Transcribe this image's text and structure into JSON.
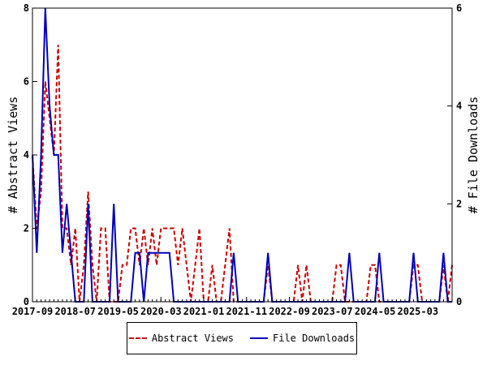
{
  "chart_data": {
    "type": "line",
    "y_left": {
      "label": "# Abstract Views",
      "range": [
        0,
        8
      ],
      "ticks": [
        0,
        2,
        4,
        6,
        8
      ]
    },
    "y_right": {
      "label": "# File Downloads",
      "range": [
        0,
        6
      ],
      "ticks": [
        0,
        2,
        4,
        6
      ]
    },
    "x": {
      "range": [
        0,
        98
      ],
      "tick_labels": [
        {
          "label": "2017-09",
          "index": 0
        },
        {
          "label": "2018-07",
          "index": 10
        },
        {
          "label": "2019-05",
          "index": 20
        },
        {
          "label": "2020-03",
          "index": 30
        },
        {
          "label": "2021-01",
          "index": 40
        },
        {
          "label": "2021-11",
          "index": 50
        },
        {
          "label": "2022-09",
          "index": 60
        },
        {
          "label": "2023-07",
          "index": 70
        },
        {
          "label": "2024-05",
          "index": 80
        },
        {
          "label": "2025-03",
          "index": 90
        }
      ]
    },
    "legend": {
      "placement": "bottom"
    },
    "grid": false,
    "series": [
      {
        "name": "Abstract Views",
        "axis": "left",
        "color": "#cc0000",
        "dash": true,
        "values": [
          4,
          2,
          3,
          6,
          5,
          4,
          7,
          2,
          2,
          1,
          2,
          0,
          1,
          3,
          1,
          0,
          2,
          2,
          0,
          0,
          0,
          1,
          1,
          2,
          2,
          1,
          2,
          1,
          2,
          1,
          2,
          2,
          2,
          2,
          1,
          2,
          1,
          0,
          1,
          2,
          0,
          0,
          1,
          0,
          0,
          1,
          2,
          0,
          0,
          0,
          0,
          0,
          0,
          0,
          0,
          1,
          0,
          0,
          0,
          0,
          0,
          0,
          1,
          0,
          1,
          0,
          0,
          0,
          0,
          0,
          0,
          1,
          1,
          0,
          0,
          0,
          0,
          0,
          0,
          1,
          1,
          0,
          0,
          0,
          0,
          0,
          0,
          0,
          0,
          1,
          1,
          0,
          0,
          0,
          0,
          0,
          1,
          0,
          1
        ]
      },
      {
        "name": "File Downloads",
        "axis": "right",
        "color": "#0000bb",
        "dash": false,
        "values": [
          3,
          1,
          3,
          6,
          4,
          3,
          3,
          1,
          2,
          1,
          0,
          0,
          0,
          2,
          0,
          0,
          0,
          0,
          0,
          2,
          0,
          0,
          0,
          0,
          1,
          1,
          0,
          1,
          1,
          1,
          1,
          1,
          1,
          0,
          0,
          0,
          0,
          0,
          0,
          0,
          0,
          0,
          0,
          0,
          0,
          0,
          0,
          1,
          0,
          0,
          0,
          0,
          0,
          0,
          0,
          1,
          0,
          0,
          0,
          0,
          0,
          0,
          0,
          0,
          0,
          0,
          0,
          0,
          0,
          0,
          0,
          0,
          0,
          0,
          1,
          0,
          0,
          0,
          0,
          0,
          0,
          1,
          0,
          0,
          0,
          0,
          0,
          0,
          0,
          1,
          0,
          0,
          0,
          0,
          0,
          0,
          1,
          0,
          0
        ]
      }
    ]
  }
}
